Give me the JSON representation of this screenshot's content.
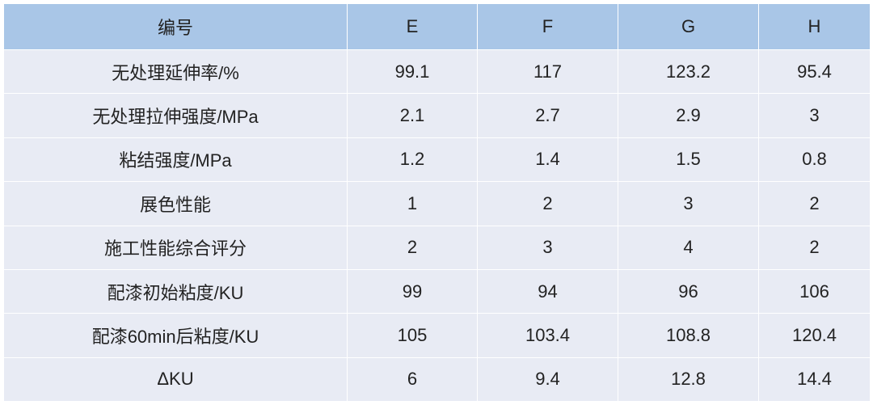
{
  "table": {
    "headers": [
      "编号",
      "E",
      "F",
      "G",
      "H"
    ],
    "rows": [
      [
        "无处理延伸率/%",
        "99.1",
        "117",
        "123.2",
        "95.4"
      ],
      [
        "无处理拉伸强度/MPa",
        "2.1",
        "2.7",
        "2.9",
        "3"
      ],
      [
        "粘结强度/MPa",
        "1.2",
        "1.4",
        "1.5",
        "0.8"
      ],
      [
        "展色性能",
        "1",
        "2",
        "3",
        "2"
      ],
      [
        "施工性能综合评分",
        "2",
        "3",
        "4",
        "2"
      ],
      [
        "配漆初始粘度/KU",
        "99",
        "94",
        "96",
        "106"
      ],
      [
        "配漆60min后粘度/KU",
        "105",
        "103.4",
        "108.8",
        "120.4"
      ],
      [
        "ΔKU",
        "6",
        "9.4",
        "12.8",
        "14.4"
      ]
    ]
  },
  "colors": {
    "header_bg": "#a9c6e7",
    "row_bg": "#e8ebf4",
    "text": "#222222"
  }
}
